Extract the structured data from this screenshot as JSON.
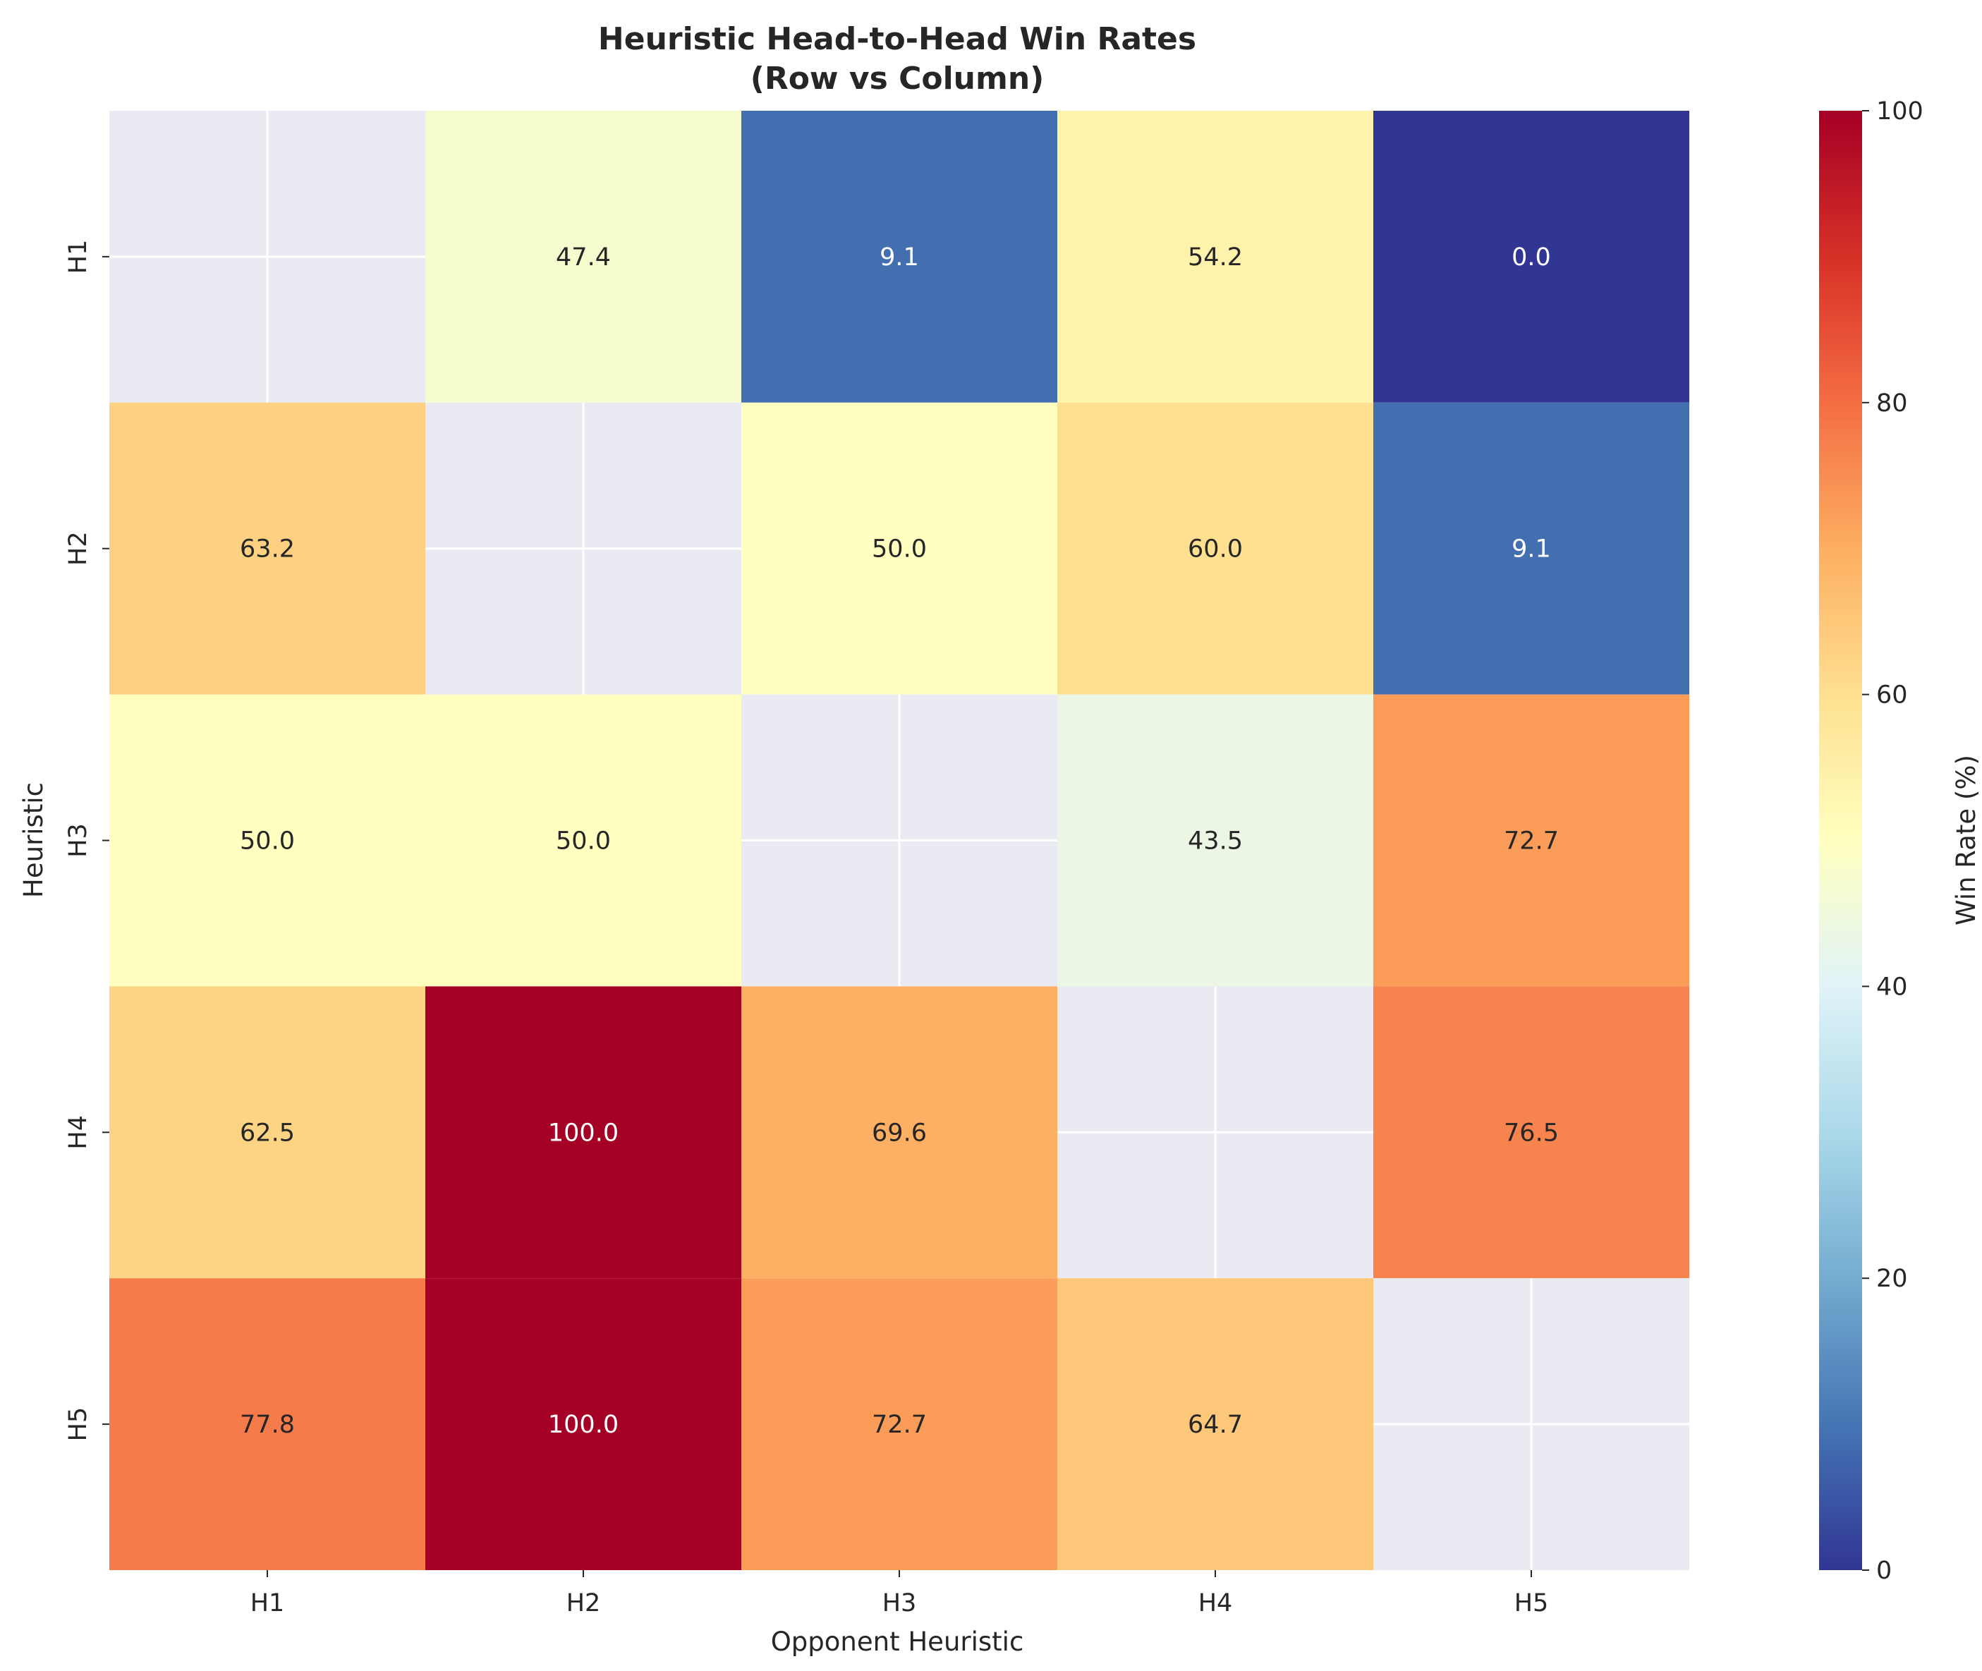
{
  "chart_data": {
    "type": "heatmap",
    "title": "Heuristic Head-to-Head Win Rates",
    "subtitle": "(Row vs Column)",
    "xlabel": "Opponent Heuristic",
    "ylabel": "Heuristic",
    "rows": [
      "H1",
      "H2",
      "H3",
      "H4",
      "H5"
    ],
    "columns": [
      "H1",
      "H2",
      "H3",
      "H4",
      "H5"
    ],
    "values": [
      [
        null,
        47.4,
        9.1,
        54.2,
        0.0
      ],
      [
        63.2,
        null,
        50.0,
        60.0,
        9.1
      ],
      [
        50.0,
        50.0,
        null,
        43.5,
        72.7
      ],
      [
        62.5,
        100.0,
        69.6,
        null,
        76.5
      ],
      [
        77.8,
        100.0,
        72.7,
        64.7,
        null
      ]
    ],
    "colorbar": {
      "label": "Win Rate (%)",
      "range": [
        0,
        100
      ],
      "ticks": [
        0,
        20,
        40,
        60,
        80,
        100
      ],
      "colormap": "RdYlBu_r"
    },
    "missing_cell_color": "#eaeaf2",
    "grid": true
  }
}
